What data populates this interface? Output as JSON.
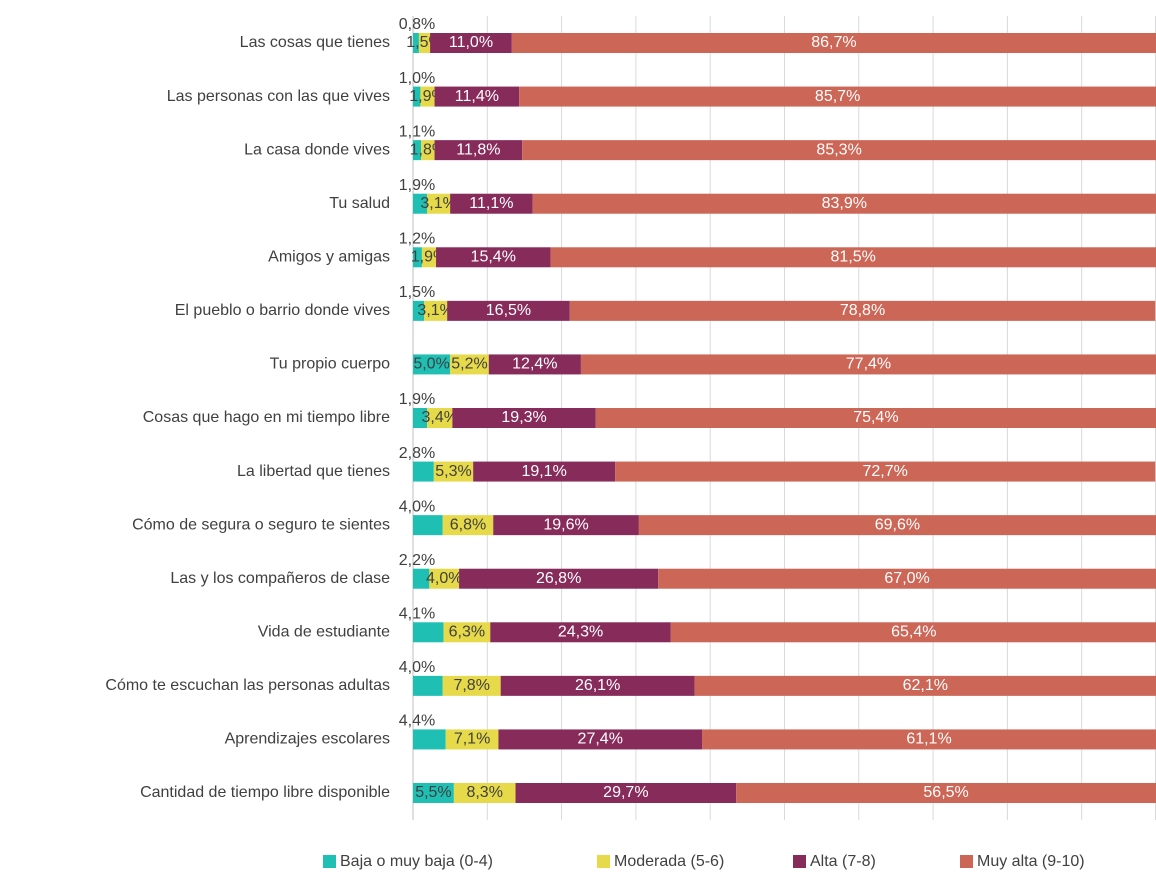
{
  "chart_data": {
    "type": "stacked-barh",
    "categories": [
      "Las cosas que tienes",
      "Las personas con las que vives",
      "La casa donde vives",
      "Tu salud",
      "Amigos y amigas",
      "El pueblo o barrio donde vives",
      "Tu propio cuerpo",
      "Cosas que hago en mi tiempo libre",
      "La libertad que tienes",
      "Cómo de segura o seguro te sientes",
      "Las y los compañeros de clase",
      "Vida de estudiante",
      "Cómo te escuchan las personas adultas",
      "Aprendizajes escolares",
      "Cantidad de tiempo libre disponible"
    ],
    "series": [
      {
        "name": "Baja o muy baja (0-4)",
        "color": "#1fbfb3",
        "values": [
          0.8,
          1.0,
          1.1,
          1.9,
          1.2,
          1.5,
          5.0,
          1.9,
          2.8,
          4.0,
          2.2,
          4.1,
          4.0,
          4.4,
          5.5
        ],
        "value_labels": [
          "0,8%",
          "1,0%",
          "1,1%",
          "1,9%",
          "1,2%",
          "1,5%",
          "5,0%",
          "1,9%",
          "2,8%",
          "4,0%",
          "2,2%",
          "4,1%",
          "4,0%",
          "4,4%",
          "5,5%"
        ]
      },
      {
        "name": "Moderada (5-6)",
        "color": "#e6d94a",
        "values": [
          1.5,
          1.9,
          1.8,
          3.1,
          1.9,
          3.1,
          5.2,
          3.4,
          5.3,
          6.8,
          4.0,
          6.3,
          7.8,
          7.1,
          8.3
        ],
        "value_labels": [
          "1,5%",
          "1,9%",
          "1,8%",
          "3,1%",
          "1,9%",
          "3,1%",
          "5,2%",
          "3,4%",
          "5,3%",
          "6,8%",
          "4,0%",
          "6,3%",
          "7,8%",
          "7,1%",
          "8,3%"
        ]
      },
      {
        "name": "Alta (7-8)",
        "color": "#872b5b",
        "values": [
          11.0,
          11.4,
          11.8,
          11.1,
          15.4,
          16.5,
          12.4,
          19.3,
          19.1,
          19.6,
          26.8,
          24.3,
          26.1,
          27.4,
          29.7
        ],
        "value_labels": [
          "11,0%",
          "11,4%",
          "11,8%",
          "11,1%",
          "15,4%",
          "16,5%",
          "12,4%",
          "19,3%",
          "19,1%",
          "19,6%",
          "26,8%",
          "24,3%",
          "26,1%",
          "27,4%",
          "29,7%"
        ]
      },
      {
        "name": "Muy alta (9-10)",
        "color": "#cc6656",
        "values": [
          86.7,
          85.7,
          85.3,
          83.9,
          81.5,
          78.8,
          77.4,
          75.4,
          72.7,
          69.6,
          67.0,
          65.4,
          62.1,
          61.1,
          56.5
        ],
        "value_labels": [
          "86,7%",
          "85,7%",
          "85,3%",
          "83,9%",
          "81,5%",
          "78,8%",
          "77,4%",
          "75,4%",
          "72,7%",
          "69,6%",
          "67,0%",
          "65,4%",
          "62,1%",
          "61,1%",
          "56,5%"
        ]
      }
    ],
    "xlim": [
      0,
      100
    ],
    "xticks": [
      0,
      10,
      20,
      30,
      40,
      50,
      60,
      70,
      80,
      90,
      100
    ],
    "grid": true,
    "legend": "bottom"
  }
}
